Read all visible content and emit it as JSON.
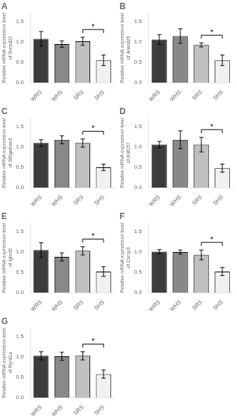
{
  "chart_data": [
    {
      "type": "bar",
      "title": "A",
      "ylabel": "Relative mRNA expression level\nof Snrpd21",
      "categories": [
        "WRS",
        "WHS",
        "SRS",
        "SHS"
      ],
      "values": [
        1.08,
        0.95,
        1.02,
        0.55
      ],
      "errors": [
        0.18,
        0.08,
        0.1,
        0.13
      ],
      "colors": [
        "#3c3c3c",
        "#888888",
        "#c0c0c0",
        "#f0f0f0"
      ],
      "ylim": [
        0,
        1.72
      ],
      "yticks": [
        {
          "value": 0,
          "label": "0.0"
        },
        0.5,
        {
          "value": 1,
          "label": "1.0"
        },
        1.5
      ],
      "grid": false,
      "annotations": [
        {
          "text": "*",
          "between": [
            "SRS",
            "SHS"
          ]
        }
      ]
    },
    {
      "type": "bar",
      "title": "B",
      "ylabel": "Relative mRNA expression level\nof Ankrd29",
      "categories": [
        "WRS",
        "WHS",
        "SRS",
        "SHS"
      ],
      "values": [
        1.06,
        1.15,
        0.93,
        0.55
      ],
      "errors": [
        0.12,
        0.18,
        0.05,
        0.13
      ],
      "colors": [
        "#3c3c3c",
        "#888888",
        "#c0c0c0",
        "#f0f0f0"
      ],
      "ylim": [
        0,
        1.72
      ],
      "yticks": [
        {
          "value": 0,
          "label": "0.0"
        },
        0.5,
        {
          "value": 1,
          "label": "1.0"
        },
        1.5
      ],
      "grid": false,
      "annotations": [
        {
          "text": "*",
          "between": [
            "SRS",
            "SHS"
          ]
        }
      ]
    },
    {
      "type": "bar",
      "title": "C",
      "ylabel": "Relative mRNA expression level\nof St6galnac6",
      "categories": [
        "WRS",
        "WHS",
        "SRS",
        "SHS"
      ],
      "values": [
        1.1,
        1.18,
        1.1,
        0.5
      ],
      "errors": [
        0.08,
        0.1,
        0.1,
        0.08
      ],
      "colors": [
        "#3c3c3c",
        "#888888",
        "#c0c0c0",
        "#f0f0f0"
      ],
      "ylim": [
        0,
        1.72
      ],
      "yticks": [
        {
          "value": 0,
          "label": "0.0"
        },
        0.5,
        {
          "value": 1,
          "label": "1.0"
        },
        1.5
      ],
      "grid": false,
      "annotations": [
        {
          "text": "*",
          "between": [
            "SRS",
            "SHS"
          ]
        }
      ]
    },
    {
      "type": "bar",
      "title": "D",
      "ylabel": "Relative mRNA expression level\nof Rnf157",
      "categories": [
        "WRS",
        "WHS",
        "SRS",
        "SHS"
      ],
      "values": [
        1.06,
        1.18,
        1.06,
        0.48
      ],
      "errors": [
        0.08,
        0.22,
        0.18,
        0.1
      ],
      "colors": [
        "#3c3c3c",
        "#888888",
        "#c0c0c0",
        "#f0f0f0"
      ],
      "ylim": [
        0,
        1.72
      ],
      "yticks": [
        {
          "value": 0,
          "label": "0.0"
        },
        0.5,
        {
          "value": 1,
          "label": "1.0"
        },
        1.5
      ],
      "grid": false,
      "annotations": [
        {
          "text": "*",
          "between": [
            "SRS",
            "SHS"
          ]
        }
      ]
    },
    {
      "type": "bar",
      "title": "E",
      "ylabel": "Relative mRNA expression level\nof Iglon5",
      "categories": [
        "WRS",
        "WHS",
        "SRS",
        "SHS"
      ],
      "values": [
        1.05,
        0.88,
        1.03,
        0.52
      ],
      "errors": [
        0.18,
        0.1,
        0.1,
        0.12
      ],
      "colors": [
        "#3c3c3c",
        "#888888",
        "#c0c0c0",
        "#f0f0f0"
      ],
      "ylim": [
        0,
        1.72
      ],
      "yticks": [
        {
          "value": 0,
          "label": "0.0"
        },
        0.5,
        {
          "value": 1,
          "label": "1.0"
        },
        1.5
      ],
      "grid": false,
      "annotations": [
        {
          "text": "*",
          "between": [
            "SRS",
            "SHS"
          ]
        }
      ]
    },
    {
      "type": "bar",
      "title": "F",
      "ylabel": "Relative mRNA expression level\nof Csrnp3",
      "categories": [
        "WRS",
        "WHS",
        "SRS",
        "SHS"
      ],
      "values": [
        1.01,
        1.0,
        0.93,
        0.52
      ],
      "errors": [
        0.05,
        0.05,
        0.12,
        0.1
      ],
      "colors": [
        "#3c3c3c",
        "#888888",
        "#c0c0c0",
        "#f0f0f0"
      ],
      "ylim": [
        0,
        1.72
      ],
      "yticks": [
        {
          "value": 0,
          "label": "0.0"
        },
        0.5,
        {
          "value": 1,
          "label": "1.0"
        },
        1.5
      ],
      "grid": false,
      "annotations": [
        {
          "text": "*",
          "between": [
            "SRS",
            "SHS"
          ]
        }
      ]
    },
    {
      "type": "bar",
      "title": "G",
      "ylabel": "Relative mRNA expression level\nof Rprd1a",
      "categories": [
        "WRS",
        "WHS",
        "SRS",
        "SHS"
      ],
      "values": [
        1.03,
        1.02,
        1.03,
        0.58
      ],
      "errors": [
        0.1,
        0.1,
        0.1,
        0.1
      ],
      "colors": [
        "#3c3c3c",
        "#888888",
        "#c0c0c0",
        "#f0f0f0"
      ],
      "ylim": [
        0,
        1.72
      ],
      "yticks": [
        {
          "value": 0,
          "label": "0.0"
        },
        0.5,
        {
          "value": 1,
          "label": "1.0"
        },
        1.5
      ],
      "grid": false,
      "annotations": [
        {
          "text": "*",
          "between": [
            "SRS",
            "SHS"
          ]
        }
      ]
    }
  ]
}
